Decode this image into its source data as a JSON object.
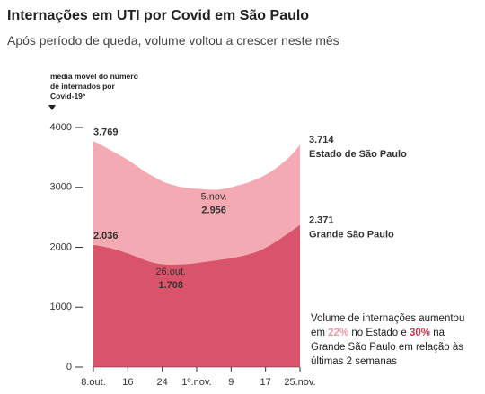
{
  "chart_data": {
    "type": "area",
    "title": "Internações em UTI por Covid em São Paulo",
    "subtitle": "Após período de queda, volume voltou a crescer neste mês",
    "y_label": "média móvel do número de internados por Covid-19*",
    "categories": [
      "8.out.",
      null,
      null,
      null,
      null,
      null,
      null,
      null,
      "16",
      null,
      null,
      null,
      null,
      null,
      null,
      null,
      "24",
      null,
      null,
      null,
      null,
      null,
      null,
      null,
      "1º.nov.",
      null,
      null,
      null,
      null,
      null,
      null,
      null,
      "9",
      null,
      null,
      null,
      null,
      null,
      null,
      null,
      "17",
      null,
      null,
      null,
      null,
      null,
      null,
      null,
      "25.nov."
    ],
    "ylim": [
      0,
      4000
    ],
    "yticks": [
      0,
      1000,
      2000,
      3000,
      4000
    ],
    "series": [
      {
        "name": "Estado de São Paulo",
        "color": "#f4aab3",
        "label_color": "#ef9aa6",
        "values": [
          3769,
          3740,
          3700,
          3660,
          3620,
          3580,
          3540,
          3500,
          3460,
          3410,
          3360,
          3310,
          3260,
          3220,
          3180,
          3140,
          3100,
          3070,
          3050,
          3030,
          3010,
          3000,
          2990,
          2980,
          2975,
          2970,
          2965,
          2960,
          2956,
          2960,
          2970,
          2985,
          3000,
          3020,
          3040,
          3060,
          3080,
          3110,
          3140,
          3170,
          3210,
          3250,
          3300,
          3350,
          3410,
          3470,
          3540,
          3620,
          3714
        ],
        "value_labels": [
          "3.769",
          null,
          null,
          null,
          null,
          null,
          null,
          null,
          null,
          null,
          null,
          null,
          null,
          null,
          null,
          null,
          null,
          null,
          null,
          null,
          null,
          null,
          null,
          null,
          null,
          null,
          null,
          null,
          "2.956",
          null,
          null,
          null,
          null,
          null,
          null,
          null,
          null,
          null,
          null,
          null,
          null,
          null,
          null,
          null,
          null,
          null,
          null,
          null,
          "3.714"
        ],
        "min_date": "5.nov."
      },
      {
        "name": "Grande São Paulo",
        "color": "#d9546a",
        "label_color": "#c83a52",
        "values": [
          2036,
          2030,
          2015,
          2000,
          1985,
          1965,
          1945,
          1920,
          1895,
          1870,
          1840,
          1810,
          1785,
          1760,
          1740,
          1725,
          1715,
          1710,
          1708,
          1710,
          1712,
          1715,
          1720,
          1725,
          1735,
          1745,
          1755,
          1765,
          1775,
          1785,
          1795,
          1805,
          1815,
          1830,
          1845,
          1860,
          1880,
          1900,
          1925,
          1955,
          1990,
          2030,
          2075,
          2120,
          2170,
          2220,
          2270,
          2320,
          2371
        ],
        "value_labels": [
          "2.036",
          null,
          null,
          null,
          null,
          null,
          null,
          null,
          null,
          null,
          null,
          null,
          null,
          null,
          null,
          null,
          null,
          null,
          "1.708",
          null,
          null,
          null,
          null,
          null,
          null,
          null,
          null,
          null,
          null,
          null,
          null,
          null,
          null,
          null,
          null,
          null,
          null,
          null,
          null,
          null,
          null,
          null,
          null,
          null,
          null,
          null,
          null,
          null,
          "2.371"
        ],
        "min_date": "26.out."
      }
    ],
    "note": [
      "Volume de internações aumentou em ",
      "22%",
      " no Estado e ",
      "30%",
      " na Grande São Paulo em relação às últimas 2 semanas"
    ]
  }
}
